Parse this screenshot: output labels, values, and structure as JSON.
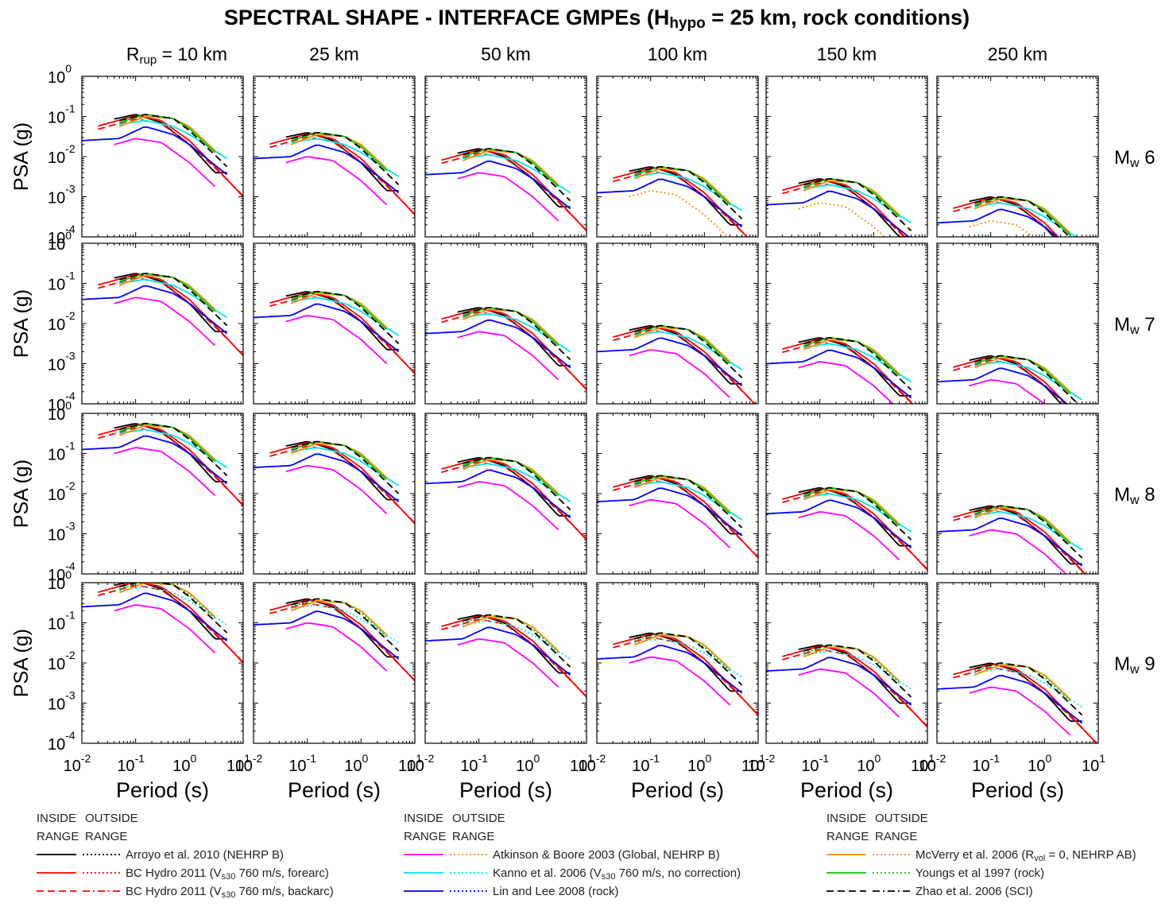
{
  "title_parts": [
    "SPECTRAL SHAPE - INTERFACE GMPEs (H",
    "hypo",
    " = 25 km, rock conditions)"
  ],
  "distance_headers": [
    {
      "main": "R",
      "sub": "rup",
      "rest": " = 10 km"
    },
    {
      "main": "25 km"
    },
    {
      "main": "50 km"
    },
    {
      "main": "100 km"
    },
    {
      "main": "150 km"
    },
    {
      "main": "250 km"
    }
  ],
  "magnitude_labels": [
    {
      "main": "M",
      "sub": "w",
      "rest": " 6"
    },
    {
      "main": "M",
      "sub": "w",
      "rest": " 7"
    },
    {
      "main": "M",
      "sub": "w",
      "rest": " 8"
    },
    {
      "main": "M",
      "sub": "w",
      "rest": " 9"
    }
  ],
  "ylabel": "PSA (g)",
  "xlabel": "Period (s)",
  "legend": {
    "head_inside": [
      "INSIDE",
      "RANGE"
    ],
    "head_outside": [
      "OUTSIDE",
      "RANGE"
    ],
    "columns": [
      [
        {
          "segments": [
            {
              "t": "Arroyo et al. 2010 (NEHRP B)"
            }
          ],
          "color": "#000000",
          "inside": "solid",
          "outside": "dotted"
        },
        {
          "segments": [
            {
              "t": "BC Hydro 2011 (V"
            },
            {
              "t": "s30",
              "sub": true
            },
            {
              "t": " 760 m/s, forearc)"
            }
          ],
          "color": "#ff0000",
          "inside": "solid",
          "outside": "dotted"
        },
        {
          "segments": [
            {
              "t": "BC Hydro 2011 (V"
            },
            {
              "t": "s30",
              "sub": true
            },
            {
              "t": " 760 m/s, backarc)"
            }
          ],
          "color": "#ff0000",
          "inside": "dashed",
          "outside": "dashdot"
        }
      ],
      [
        {
          "segments": [
            {
              "t": "Atkinson & Boore 2003 (Global, NEHRP B)"
            }
          ],
          "color": "#ff00ff",
          "outside_color": "#ff8c00",
          "inside": "solid",
          "outside": "dotted"
        },
        {
          "segments": [
            {
              "t": "Kanno et al. 2006 (V"
            },
            {
              "t": "s30",
              "sub": true
            },
            {
              "t": " 760 m/s, no correction)"
            }
          ],
          "color": "#00e5ee",
          "inside": "solid",
          "outside": "dotted"
        },
        {
          "segments": [
            {
              "t": "Lin and Lee 2008 (rock)"
            }
          ],
          "color": "#0000ff",
          "inside": "solid",
          "outside": "dotted"
        }
      ],
      [
        {
          "segments": [
            {
              "t": "McVerry et al. 2006 (R"
            },
            {
              "t": "vol",
              "sub": true
            },
            {
              "t": " = 0, NEHRP AB)"
            }
          ],
          "color": "#ff8c00",
          "inside": "solid",
          "outside": "dotted"
        },
        {
          "segments": [
            {
              "t": "Youngs et al 1997 (rock)"
            }
          ],
          "color": "#00cc00",
          "inside": "solid",
          "outside": "dotted"
        },
        {
          "segments": [
            {
              "t": "Zhao et al. 2006 (SCI)"
            }
          ],
          "color": "#000000",
          "inside": "dashed",
          "outside": "dashdot"
        }
      ]
    ]
  },
  "chart_data": {
    "type": "line",
    "xscale": "log",
    "yscale": "log",
    "xlim": [
      0.01,
      10
    ],
    "ylim": [
      0.0001,
      1
    ],
    "xticks": [
      0.01,
      0.1,
      1,
      10
    ],
    "yticks": [
      0.0001,
      0.001,
      0.01,
      0.1,
      1
    ],
    "x_tick_labels": [
      {
        "b": "10",
        "e": "-2"
      },
      {
        "b": "10",
        "e": "-1"
      },
      {
        "b": "10",
        "e": "0"
      },
      {
        "b": "10",
        "e": "1"
      }
    ],
    "y_tick_labels": [
      {
        "b": "10",
        "e": "-4"
      },
      {
        "b": "10",
        "e": "-3"
      },
      {
        "b": "10",
        "e": "-2"
      },
      {
        "b": "10",
        "e": "-1"
      },
      {
        "b": "10",
        "e": "0"
      }
    ],
    "columns": [
      "10 km",
      "25 km",
      "50 km",
      "100 km",
      "150 km",
      "250 km"
    ],
    "rows": [
      "Mw 6",
      "Mw 7",
      "Mw 8",
      "Mw 9"
    ],
    "models": [
      {
        "name": "Arroyo et al. 2010 (NEHRP B)",
        "color": "#000000",
        "inside": "solid",
        "outside": "dotted",
        "shape": [
          [
            0.03,
            0.0
          ],
          [
            0.1,
            0.15
          ],
          [
            0.3,
            -0.05
          ],
          [
            1,
            -0.6
          ],
          [
            3,
            -1.3
          ]
        ],
        "t_min": 0.04,
        "t_max": 5,
        "offset": 0.0
      },
      {
        "name": "BC Hydro 2011 forearc",
        "color": "#ff0000",
        "inside": "solid",
        "outside": "dotted",
        "shape": [
          [
            0.01,
            -0.25
          ],
          [
            0.1,
            0.12
          ],
          [
            0.3,
            0.0
          ],
          [
            1,
            -0.5
          ],
          [
            3,
            -1.15
          ],
          [
            10,
            -1.9
          ]
        ],
        "t_min": 0.02,
        "t_max": 10,
        "offset": 0.0
      },
      {
        "name": "BC Hydro 2011 backarc",
        "color": "#ff0000",
        "inside": "dashed",
        "outside": "dashdot",
        "shape": [
          [
            0.01,
            -0.25
          ],
          [
            0.1,
            0.12
          ],
          [
            0.3,
            0.0
          ],
          [
            1,
            -0.5
          ],
          [
            3,
            -1.1
          ],
          [
            10,
            -1.8
          ]
        ],
        "t_min": 0.02,
        "t_max": 10,
        "offset": -0.08
      },
      {
        "name": "Atkinson & Boore 2003",
        "color": "#ff00ff",
        "outside_color": "#ff8c00",
        "inside": "solid",
        "outside": "dotted",
        "shape": [
          [
            0.04,
            -0.35
          ],
          [
            0.1,
            -0.2
          ],
          [
            0.3,
            -0.3
          ],
          [
            1,
            -0.8
          ],
          [
            3,
            -1.4
          ]
        ],
        "t_min": 0.04,
        "t_max": 3,
        "offset": -0.25
      },
      {
        "name": "Kanno et al. 2006",
        "color": "#00e5ee",
        "inside": "solid",
        "outside": "dotted",
        "shape": [
          [
            0.05,
            -0.05
          ],
          [
            0.15,
            0.05
          ],
          [
            0.5,
            -0.1
          ],
          [
            1,
            -0.3
          ],
          [
            5,
            -0.9
          ]
        ],
        "t_min": 0.05,
        "t_max": 5,
        "offset": -0.05
      },
      {
        "name": "Lin and Lee 2008",
        "color": "#0000ff",
        "inside": "solid",
        "outside": "dotted",
        "shape": [
          [
            0.01,
            -0.45
          ],
          [
            0.05,
            -0.4
          ],
          [
            0.15,
            -0.1
          ],
          [
            0.5,
            -0.3
          ],
          [
            1,
            -0.55
          ],
          [
            5,
            -1.3
          ]
        ],
        "t_min": 0.01,
        "t_max": 5,
        "offset": -0.05
      },
      {
        "name": "McVerry et al. 2006",
        "color": "#ff8c00",
        "inside": "solid",
        "outside": "dotted",
        "shape": [
          [
            0.05,
            -0.2
          ],
          [
            0.15,
            0.05
          ],
          [
            0.5,
            0.0
          ],
          [
            1,
            -0.2
          ],
          [
            3,
            -0.8
          ]
        ],
        "t_min": 0.05,
        "t_max": 3,
        "offset": 0.05
      },
      {
        "name": "Youngs et al 1997",
        "color": "#00cc00",
        "inside": "solid",
        "outside": "dotted",
        "shape": [
          [
            0.05,
            -0.05
          ],
          [
            0.15,
            0.15
          ],
          [
            0.5,
            0.05
          ],
          [
            1,
            -0.2
          ],
          [
            3,
            -0.8
          ]
        ],
        "t_min": 0.05,
        "t_max": 3,
        "offset": 0.0
      },
      {
        "name": "Zhao et al. 2006 (SCI)",
        "color": "#000000",
        "inside": "dashed",
        "outside": "dashdot",
        "shape": [
          [
            0.05,
            -0.05
          ],
          [
            0.15,
            0.1
          ],
          [
            0.5,
            0.0
          ],
          [
            1,
            -0.3
          ],
          [
            5,
            -1.2
          ]
        ],
        "t_min": 0.05,
        "t_max": 5,
        "offset": 0.05
      }
    ],
    "row_base_log": [
      -1.1,
      -0.9,
      -0.4,
      -0.1
    ],
    "col_decay_log": [
      0.0,
      -0.45,
      -0.85,
      -1.3,
      -1.6,
      -2.05
    ]
  }
}
